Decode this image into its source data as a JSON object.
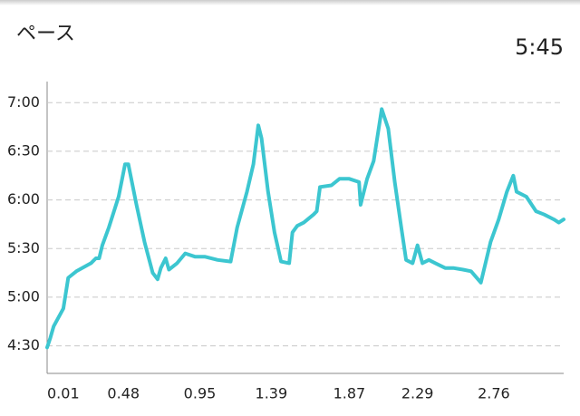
{
  "chart_data": {
    "type": "line",
    "title": "ペース",
    "current_value": "5:45",
    "x": [
      0.01,
      0.03,
      0.05,
      0.11,
      0.14,
      0.19,
      0.28,
      0.31,
      0.33,
      0.35,
      0.39,
      0.45,
      0.49,
      0.51,
      0.56,
      0.61,
      0.66,
      0.69,
      0.71,
      0.74,
      0.76,
      0.81,
      0.86,
      0.92,
      0.98,
      1.06,
      1.14,
      1.18,
      1.24,
      1.28,
      1.31,
      1.33,
      1.37,
      1.41,
      1.45,
      1.5,
      1.52,
      1.55,
      1.59,
      1.65,
      1.67,
      1.69,
      1.76,
      1.81,
      1.87,
      1.93,
      1.94,
      1.98,
      2.02,
      2.07,
      2.11,
      2.15,
      2.19,
      2.22,
      2.26,
      2.29,
      2.32,
      2.36,
      2.4,
      2.46,
      2.51,
      2.57,
      2.62,
      2.68,
      2.74,
      2.79,
      2.84,
      2.88,
      2.9,
      2.96,
      3.02,
      3.07,
      3.13,
      3.16,
      3.19
    ],
    "series": [
      {
        "color": "#3cc6d0",
        "values": [
          269,
          275,
          282,
          293,
          312,
          316,
          321,
          324,
          324,
          332,
          343,
          362,
          382,
          382,
          357,
          334,
          315,
          311,
          318,
          324,
          317,
          321,
          327,
          325,
          325,
          323,
          322,
          343,
          365,
          382,
          406,
          398,
          365,
          340,
          322,
          321,
          340,
          344,
          346,
          351,
          353,
          368,
          369,
          373,
          373,
          371,
          357,
          373,
          384,
          416,
          404,
          371,
          343,
          323,
          321,
          332,
          321,
          323,
          321,
          318,
          318,
          317,
          316,
          309,
          334,
          348,
          365,
          375,
          365,
          362,
          353,
          351,
          348,
          346,
          348
        ]
      }
    ],
    "xlim": [
      0.01,
      3.19
    ],
    "xticks": [
      0.01,
      0.48,
      0.95,
      1.39,
      1.87,
      2.29,
      2.76
    ],
    "ylim": [
      253,
      433
    ],
    "yticks": [
      {
        "value": 270,
        "label": "4:30"
      },
      {
        "value": 300,
        "label": "5:00"
      },
      {
        "value": 330,
        "label": "5:30"
      },
      {
        "value": 360,
        "label": "6:00"
      },
      {
        "value": 390,
        "label": "6:30"
      },
      {
        "value": 420,
        "label": "7:00"
      }
    ],
    "grid": true
  }
}
